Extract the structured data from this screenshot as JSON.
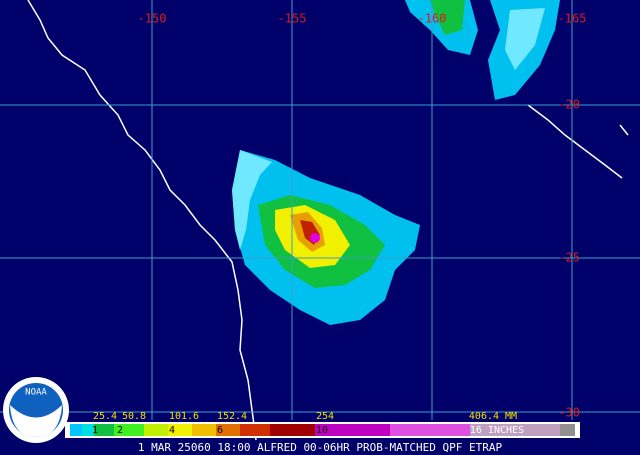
{
  "map": {
    "longitude_labels": [
      "-150",
      "-155",
      "-160",
      "-165"
    ],
    "latitude_labels": [
      "-20",
      "-25",
      "-30"
    ],
    "legend": {
      "mm_labels": [
        "25.4",
        "50.8",
        "101.6",
        "152.4",
        "254",
        "406.4 MM"
      ],
      "inch_labels": [
        "1",
        "2",
        "4",
        "6",
        "10",
        "16 INCHES"
      ]
    },
    "caption": "1 MAR 25060 18:00 ALFRED 00-06HR PROB-MATCHED QPF ETRAP",
    "logo": "NOAA"
  }
}
